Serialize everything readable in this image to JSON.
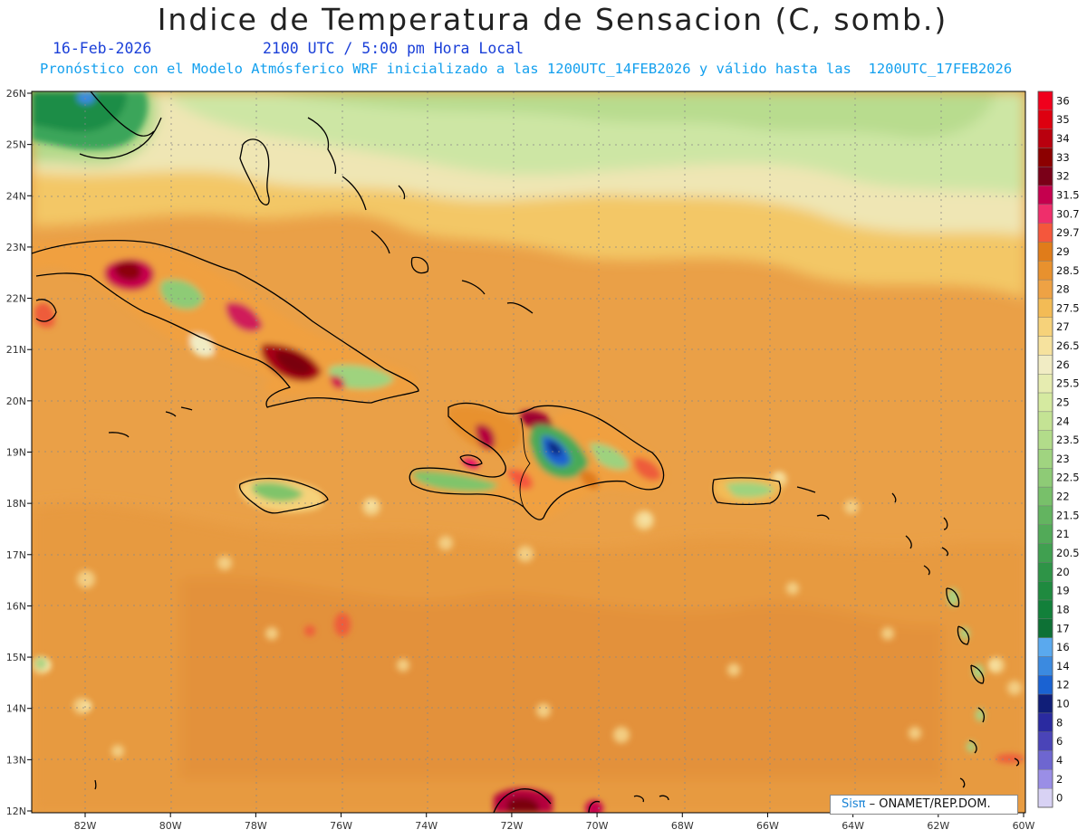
{
  "header": {
    "title": "Indice de Temperatura de Sensacion (C, somb.)",
    "date": "16-Feb-2026",
    "time": "2100 UTC / 5:00 pm Hora Local",
    "init_line": "Pronóstico con el Modelo Atmósferico WRF inicializado a las 1200UTC_14FEB2026 y válido hasta las  1200UTC_17FEB2026"
  },
  "map": {
    "lat_labels": [
      "26N",
      "25N",
      "24N",
      "23N",
      "22N",
      "21N",
      "20N",
      "19N",
      "18N",
      "17N",
      "16N",
      "15N",
      "14N",
      "13N",
      "12N"
    ],
    "lon_labels": [
      "82W",
      "80W",
      "78W",
      "76W",
      "74W",
      "72W",
      "70W",
      "68W",
      "66W",
      "64W",
      "62W",
      "60W"
    ],
    "lat_range": [
      12,
      26
    ],
    "lon_range": [
      -83.2,
      -60
    ],
    "grid": true
  },
  "colorbar": {
    "levels": [
      "36",
      "35",
      "34",
      "33",
      "32",
      "31.5",
      "30.7",
      "29.7",
      "29",
      "28.5",
      "28",
      "27.5",
      "27",
      "26.5",
      "26",
      "25.5",
      "25",
      "24",
      "23.5",
      "23",
      "22.5",
      "22",
      "21.5",
      "21",
      "20.5",
      "20",
      "19",
      "18",
      "17",
      "16",
      "14",
      "12",
      "10",
      "8",
      "6",
      "4",
      "2",
      "0"
    ],
    "colors": [
      "#f0001c",
      "#dd0010",
      "#b9000e",
      "#8c0000",
      "#7a0018",
      "#c5004e",
      "#ef2e6b",
      "#f4573c",
      "#e07c1a",
      "#e8912e",
      "#eea244",
      "#f3bb55",
      "#f6d27a",
      "#f6e29e",
      "#f1ecc4",
      "#e6ecb0",
      "#d5eaa0",
      "#c4e394",
      "#b2dc8a",
      "#a0d480",
      "#8ecb76",
      "#78c06a",
      "#63b460",
      "#52aa58",
      "#40a050",
      "#2e9447",
      "#1f8a3f",
      "#12803a",
      "#0d7135",
      "#5aa9ee",
      "#3b8ae0",
      "#1a62d2",
      "#101e78",
      "#2a2aa0",
      "#4a44b8",
      "#6e66d0",
      "#9a8ee6",
      "#d8d2f4"
    ]
  },
  "credit": {
    "logo": "Sisπ",
    "text": "– ONAMET/REP.DOM."
  }
}
